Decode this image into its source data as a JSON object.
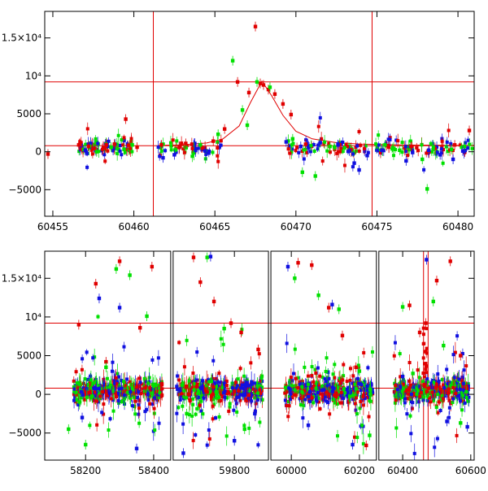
{
  "chart_data": [
    {
      "type": "scatter",
      "panel": "top",
      "xlim": [
        60454.5,
        60481
      ],
      "ylim": [
        -8500,
        18500
      ],
      "xticks": [
        60455,
        60460,
        60465,
        60470,
        60475,
        60480
      ],
      "xtick_labels": [
        "60455",
        "60460",
        "60465",
        "60470",
        "60475",
        "60480"
      ],
      "yticks": [
        -5000,
        0,
        5000,
        10000,
        15000
      ],
      "ytick_labels": [
        "−5000",
        "0",
        "5000",
        "10⁴",
        "1.5×10⁴"
      ],
      "hlines": [
        9200,
        800
      ],
      "vlines": [
        60461.2,
        60474.7
      ],
      "model_curve": {
        "color": "#e00000",
        "peak_x": 60467.9,
        "peak_y": 9300,
        "baseline": 800,
        "x": [
          60461.5,
          60463.0,
          60464.5,
          60465.5,
          60466.5,
          60467.2,
          60467.9,
          60468.5,
          60469.2,
          60470.0,
          60471.0,
          60472.5,
          60474.0,
          60477.0,
          60481.0
        ],
        "y": [
          830,
          900,
          1150,
          1700,
          3400,
          6500,
          9300,
          7400,
          4800,
          2700,
          1700,
          1200,
          1000,
          880,
          830
        ]
      },
      "series": [
        {
          "color": "#e00000",
          "x": [
            60454.7,
            60456.6,
            60456.8,
            60457.2,
            60457.6,
            60458.3,
            60458.8,
            60459.5,
            60460.2,
            60461.7,
            60463.2,
            60464.2,
            60464.9,
            60465.6,
            60466.4,
            60467.1,
            60467.5,
            60467.8,
            60468.0,
            60468.3,
            60468.7,
            60469.2,
            60469.7,
            60470.6,
            60472.7,
            60475.6,
            60477.1,
            60479.8,
            60480.7
          ],
          "y": [
            -300,
            900,
            300,
            700,
            400,
            900,
            1000,
            4300,
            600,
            900,
            1100,
            500,
            1400,
            3000,
            9200,
            7800,
            16500,
            9000,
            8800,
            8200,
            7600,
            6300,
            4900,
            1000,
            900,
            800,
            700,
            900,
            2800
          ]
        },
        {
          "color": "#00e000",
          "x": [
            60456.9,
            60457.7,
            60458.6,
            60459.4,
            60459.9,
            60464.1,
            60465.2,
            60466.1,
            60466.7,
            60467.0,
            60467.6,
            60468.4,
            60469.8,
            60470.4,
            60471.2,
            60472.1,
            60473.0,
            60475.5,
            60476.4,
            60477.8,
            60478.1,
            60479.6,
            60480.4
          ],
          "y": [
            300,
            0,
            600,
            300,
            900,
            900,
            2300,
            12000,
            5500,
            3500,
            9200,
            8500,
            1700,
            -2700,
            -3200,
            700,
            500,
            900,
            200,
            -1000,
            -4900,
            300,
            700
          ]
        },
        {
          "color": "#1010e0",
          "x": [
            60457.0,
            60461.8,
            60462.5,
            60464.4,
            60469.4,
            60470.3,
            60471.5,
            60472.6,
            60473.3,
            60473.6,
            60473.9,
            60474.4,
            60475.3,
            60476.8,
            60477.2,
            60478.2,
            60478.9,
            60479.7,
            60480.3
          ],
          "y": [
            200,
            -800,
            -400,
            100,
            1300,
            700,
            1200,
            900,
            100,
            -1500,
            -2400,
            -500,
            200,
            -1200,
            -100,
            200,
            -400,
            -1000,
            100
          ]
        }
      ]
    },
    {
      "type": "scatter",
      "panel": "bottom",
      "broken_x_axis": true,
      "x_segments": [
        [
          58080,
          58450
        ],
        [
          59620,
          59900
        ],
        [
          59940,
          60250
        ],
        [
          60330,
          60610
        ]
      ],
      "ylim": [
        -8500,
        18500
      ],
      "xticks": [
        58200,
        58400,
        59800,
        60000,
        60200,
        60400,
        60600
      ],
      "xtick_labels": [
        "58200",
        "58400",
        "59800",
        "60000",
        "60200",
        "60400",
        "60600"
      ],
      "yticks": [
        -5000,
        0,
        5000,
        10000,
        15000
      ],
      "ytick_labels": [
        "−5000",
        "0",
        "5000",
        "10⁴",
        "1.5×10⁴"
      ],
      "hlines": [
        9200,
        800
      ],
      "vlines": [
        60461.2,
        60474.7
      ],
      "observing_seasons": [
        [
          58165,
          58425
        ],
        [
          59630,
          59885
        ],
        [
          59980,
          60240
        ],
        [
          60375,
          60595
        ]
      ],
      "series": [
        {
          "color": "#e00000",
          "x": [
            58180,
            58230,
            58260,
            58300,
            58360,
            58395,
            59680,
            59700,
            59740,
            59790,
            59820,
            59870,
            60020,
            60060,
            60110,
            60150,
            60190,
            60220,
            60420,
            60450,
            60468,
            60500,
            60540,
            60570
          ],
          "y": [
            9000,
            14300,
            4200,
            17200,
            8600,
            16500,
            17700,
            14500,
            12000,
            9200,
            8000,
            5800,
            17000,
            16700,
            11200,
            7600,
            3500,
            -6600,
            11500,
            8000,
            9200,
            14700,
            17200,
            5000
          ]
        },
        {
          "color": "#00e000",
          "x": [
            58150,
            58200,
            58260,
            58290,
            58330,
            58380,
            59660,
            59720,
            59770,
            59830,
            60010,
            60080,
            60140,
            60200,
            60230,
            60400,
            60430,
            60490,
            60520,
            60570
          ],
          "y": [
            -4500,
            -6500,
            3500,
            16200,
            15400,
            10100,
            -2500,
            17700,
            8500,
            -4500,
            15000,
            12800,
            11000,
            3000,
            -5300,
            11300,
            2700,
            12000,
            6300,
            -3700
          ]
        },
        {
          "color": "#1010e0",
          "x": [
            58190,
            58240,
            58300,
            58350,
            59650,
            59730,
            59800,
            59860,
            59990,
            60050,
            60120,
            60180,
            60400,
            60470,
            60530,
            60590
          ],
          "y": [
            -3000,
            12400,
            11200,
            -7000,
            -7600,
            17800,
            -6000,
            -2500,
            16500,
            -4000,
            11600,
            -6500,
            2300,
            17400,
            -3500,
            -4200
          ]
        }
      ]
    }
  ]
}
